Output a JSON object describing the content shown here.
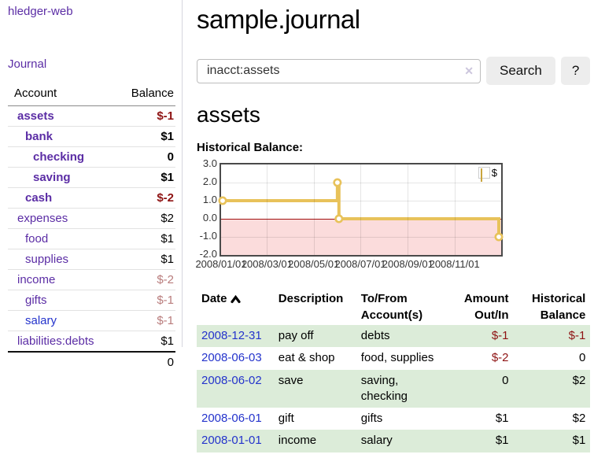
{
  "sidebar": {
    "app_title": "hledger-web",
    "journal_link": "Journal",
    "accounts": {
      "header_account": "Account",
      "header_balance": "Balance",
      "rows": [
        {
          "name": "assets",
          "balance": "$-1"
        },
        {
          "name": "bank",
          "balance": "$1"
        },
        {
          "name": "checking",
          "balance": "0"
        },
        {
          "name": "saving",
          "balance": "$1"
        },
        {
          "name": "cash",
          "balance": "$-2"
        },
        {
          "name": "expenses",
          "balance": "$2"
        },
        {
          "name": "food",
          "balance": "$1"
        },
        {
          "name": "supplies",
          "balance": "$1"
        },
        {
          "name": "income",
          "balance": "$-2"
        },
        {
          "name": "gifts",
          "balance": "$-1"
        },
        {
          "name": "salary",
          "balance": "$-1"
        },
        {
          "name": "liabilities:debts",
          "balance": "$1"
        }
      ],
      "total": "0"
    }
  },
  "main": {
    "title": "sample.journal",
    "search": {
      "value": "inacct:assets",
      "clear_glyph": "✕",
      "search_label": "Search",
      "help_label": "?"
    },
    "account_heading": "assets",
    "section_label": "Historical Balance:"
  },
  "chart_data": {
    "type": "line",
    "style": "step-after",
    "title": "Historical Balance:",
    "series": [
      {
        "name": "$",
        "color": "#e8c25a",
        "points": [
          {
            "date": "2008-01-01",
            "value": 1.0
          },
          {
            "date": "2008-06-01",
            "value": 2.0
          },
          {
            "date": "2008-06-03",
            "value": 0.0
          },
          {
            "date": "2008-12-31",
            "value": -1.0
          }
        ]
      }
    ],
    "ylim": [
      -2.0,
      3.0
    ],
    "yticks": [
      "3.0",
      "2.0",
      "1.0",
      "0.0",
      "-1.0",
      "-2.0"
    ],
    "xlim": [
      "2008-01-01",
      "2009-01-01"
    ],
    "xticks": [
      "2008/01/01",
      "2008/03/01",
      "2008/05/01",
      "2008/07/01",
      "2008/09/01",
      "2008/11/01"
    ],
    "grid": true,
    "legend_position": "top-right",
    "negative_region_color": "#fbdcdc",
    "zero_line_color": "#a11212"
  },
  "register": {
    "headers": {
      "date": "Date",
      "description": "Description",
      "tofrom": "To/From Account(s)",
      "amount": "Amount Out/In",
      "balance": "Historical Balance"
    },
    "rows": [
      {
        "date": "2008-12-31",
        "description": "pay off",
        "accounts": "debts",
        "amount": "$-1",
        "balance": "$-1"
      },
      {
        "date": "2008-06-03",
        "description": "eat & shop",
        "accounts": "food, supplies",
        "amount": "$-2",
        "balance": "0"
      },
      {
        "date": "2008-06-02",
        "description": "save",
        "accounts": "saving, checking",
        "amount": "0",
        "balance": "$2"
      },
      {
        "date": "2008-06-01",
        "description": "gift",
        "accounts": "gifts",
        "amount": "$1",
        "balance": "$2"
      },
      {
        "date": "2008-01-01",
        "description": "income",
        "accounts": "salary",
        "amount": "$1",
        "balance": "$1"
      }
    ]
  },
  "colors": {
    "link_purple": "#5b2da5",
    "link_blue": "#2433cc",
    "negative_strong": "#8e1313",
    "negative_soft": "#b97c7c",
    "row_green": "#dcecd9",
    "chart_line": "#e8c25a",
    "chart_negative_fill": "#fbdcdc",
    "chart_zero_line": "#a11212",
    "button_bg": "#ededed"
  }
}
